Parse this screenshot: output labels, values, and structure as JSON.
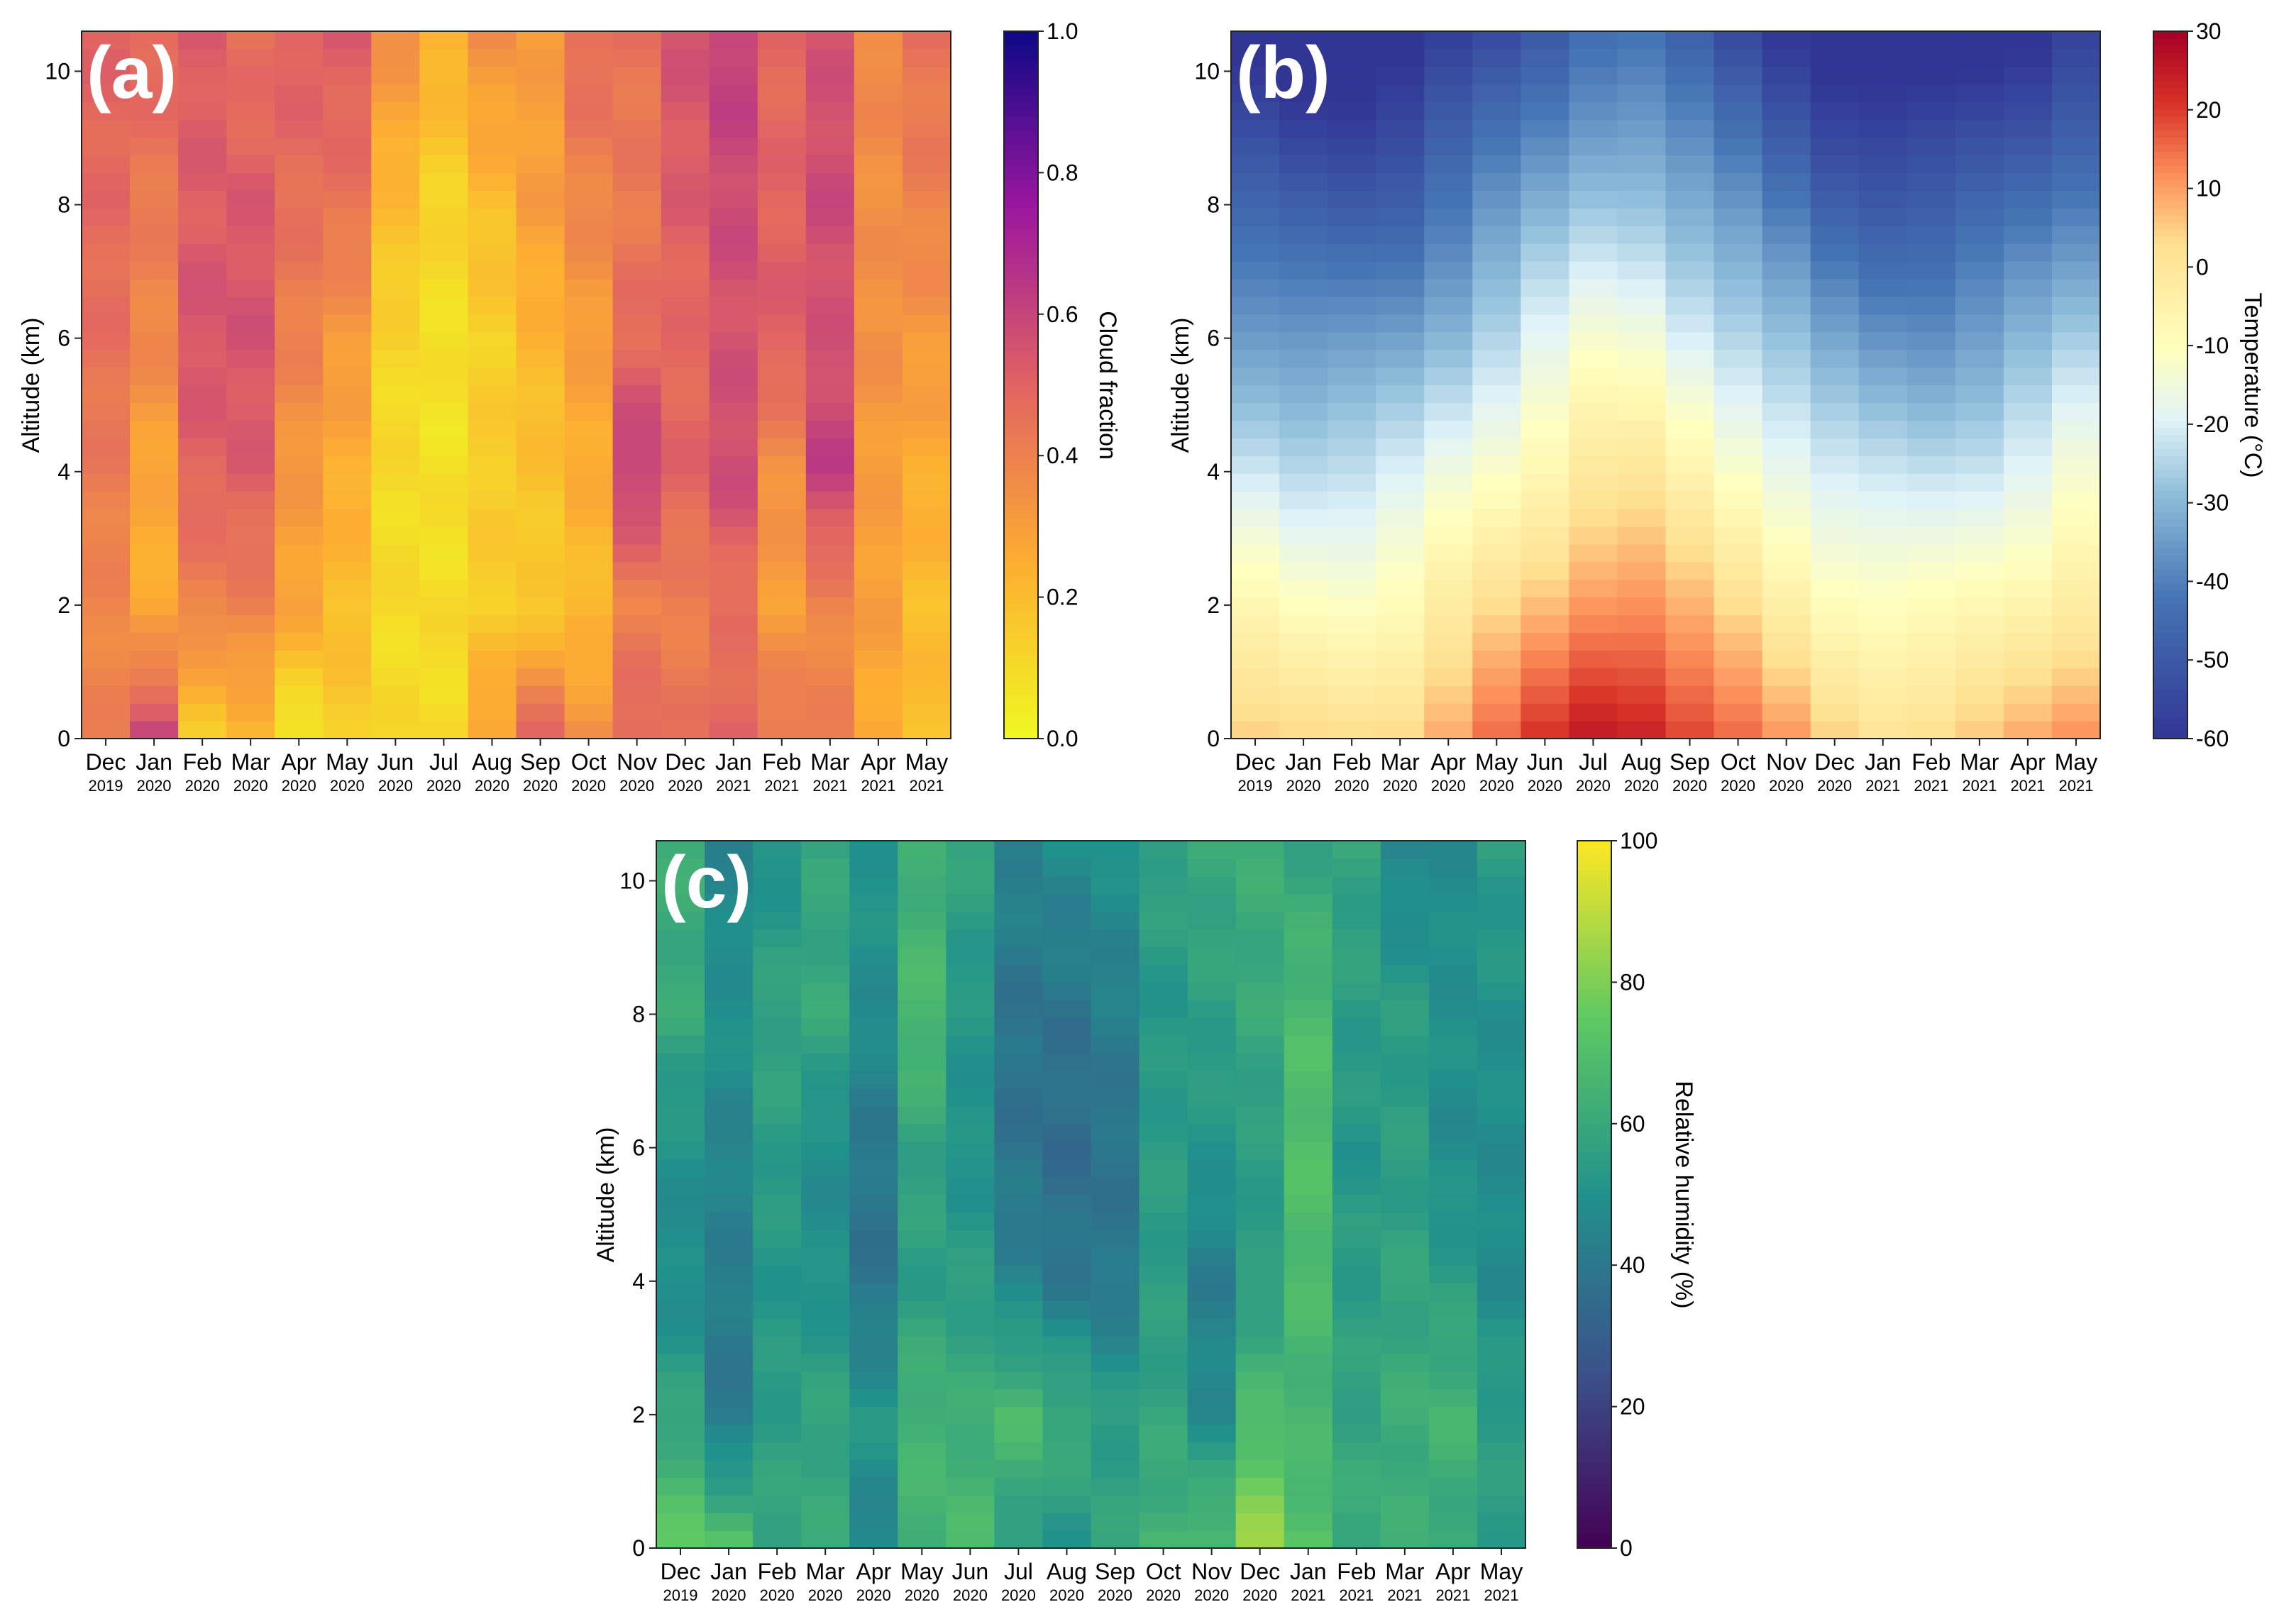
{
  "figure": {
    "months": [
      "Dec",
      "Jan",
      "Feb",
      "Mar",
      "Apr",
      "May",
      "Jun",
      "Jul",
      "Aug",
      "Sep",
      "Oct",
      "Nov",
      "Dec",
      "Jan",
      "Feb",
      "Mar",
      "Apr",
      "May"
    ],
    "years": [
      "2019",
      "2020",
      "2020",
      "2020",
      "2020",
      "2020",
      "2020",
      "2020",
      "2020",
      "2020",
      "2020",
      "2020",
      "2020",
      "2021",
      "2021",
      "2021",
      "2021",
      "2021"
    ]
  },
  "chart_data": [
    {
      "type": "heatmap",
      "panel_label": "(a)",
      "variable": "cloud_fraction",
      "ylabel": "Altitude (km)",
      "colorbar_label": "Cloud fraction",
      "ylim": [
        0,
        10.6
      ],
      "yticks": [
        "0",
        "2",
        "4",
        "6",
        "8",
        "10"
      ],
      "clim": [
        0,
        1
      ],
      "colorbar_ticks": [
        "0.0",
        "0.2",
        "0.4",
        "0.6",
        "0.8",
        "1.0"
      ],
      "colormap": "plasma_r",
      "monthly_profile": {
        "altitude_km": [
          0,
          2,
          4,
          6,
          8,
          10.5
        ],
        "values": [
          [
            0.4,
            0.38,
            0.42,
            0.46,
            0.48,
            0.5
          ],
          [
            0.6,
            0.25,
            0.27,
            0.38,
            0.42,
            0.5
          ],
          [
            0.15,
            0.4,
            0.5,
            0.55,
            0.52,
            0.52
          ],
          [
            0.2,
            0.4,
            0.52,
            0.55,
            0.53,
            0.45
          ],
          [
            0.05,
            0.28,
            0.32,
            0.4,
            0.46,
            0.52
          ],
          [
            0.15,
            0.2,
            0.25,
            0.32,
            0.45,
            0.52
          ],
          [
            0.1,
            0.1,
            0.1,
            0.12,
            0.2,
            0.35
          ],
          [
            0.1,
            0.1,
            0.08,
            0.08,
            0.12,
            0.25
          ],
          [
            0.3,
            0.15,
            0.15,
            0.14,
            0.2,
            0.35
          ],
          [
            0.5,
            0.15,
            0.18,
            0.22,
            0.3,
            0.3
          ],
          [
            0.35,
            0.2,
            0.25,
            0.3,
            0.38,
            0.48
          ],
          [
            0.5,
            0.4,
            0.62,
            0.48,
            0.42,
            0.45
          ],
          [
            0.45,
            0.4,
            0.5,
            0.48,
            0.52,
            0.55
          ],
          [
            0.5,
            0.45,
            0.58,
            0.55,
            0.58,
            0.62
          ],
          [
            0.45,
            0.3,
            0.35,
            0.52,
            0.5,
            0.48
          ],
          [
            0.4,
            0.38,
            0.62,
            0.55,
            0.58,
            0.55
          ],
          [
            0.25,
            0.3,
            0.3,
            0.35,
            0.35,
            0.38
          ],
          [
            0.2,
            0.2,
            0.25,
            0.32,
            0.4,
            0.45
          ]
        ]
      }
    },
    {
      "type": "heatmap",
      "panel_label": "(b)",
      "variable": "temperature",
      "ylabel": "Altitude (km)",
      "colorbar_label": "Temperature (°C)",
      "ylim": [
        0,
        10.6
      ],
      "yticks": [
        "0",
        "2",
        "4",
        "6",
        "8",
        "10"
      ],
      "clim": [
        -60,
        30
      ],
      "colorbar_ticks": [
        "30",
        "20",
        "10",
        "0",
        "-10",
        "-20",
        "-30",
        "-40",
        "-50",
        "-60"
      ],
      "colormap": "RdYlBu_r",
      "surface_temperature_c": [
        5,
        3,
        3,
        5,
        10,
        15,
        20,
        25,
        25,
        20,
        15,
        10,
        5,
        3,
        3,
        5,
        8,
        12
      ],
      "lapse_rate_c_per_km": 6.5
    },
    {
      "type": "heatmap",
      "panel_label": "(c)",
      "variable": "relative_humidity",
      "ylabel": "Altitude (km)",
      "colorbar_label": "Relative humidity (%)",
      "ylim": [
        0,
        10.6
      ],
      "yticks": [
        "0",
        "2",
        "4",
        "6",
        "8",
        "10"
      ],
      "clim": [
        0,
        100
      ],
      "colorbar_ticks": [
        "0",
        "20",
        "40",
        "60",
        "80",
        "100"
      ],
      "colormap": "viridis",
      "monthly_profile": {
        "altitude_km": [
          0,
          2,
          4,
          6,
          8,
          10.5
        ],
        "values": [
          [
            75,
            58,
            48,
            50,
            60,
            62
          ],
          [
            72,
            40,
            42,
            45,
            50,
            45
          ],
          [
            60,
            55,
            52,
            55,
            58,
            50
          ],
          [
            60,
            58,
            50,
            48,
            60,
            58
          ],
          [
            45,
            52,
            38,
            40,
            48,
            52
          ],
          [
            65,
            65,
            55,
            58,
            68,
            62
          ],
          [
            68,
            62,
            55,
            50,
            52,
            58
          ],
          [
            55,
            68,
            45,
            38,
            38,
            45
          ],
          [
            52,
            62,
            40,
            35,
            38,
            48
          ],
          [
            58,
            55,
            40,
            38,
            42,
            50
          ],
          [
            65,
            58,
            55,
            55,
            52,
            58
          ],
          [
            70,
            48,
            42,
            52,
            56,
            60
          ],
          [
            85,
            68,
            55,
            55,
            60,
            62
          ],
          [
            72,
            65,
            68,
            70,
            68,
            58
          ],
          [
            62,
            58,
            55,
            52,
            55,
            58
          ],
          [
            62,
            62,
            58,
            55,
            55,
            45
          ],
          [
            60,
            65,
            55,
            48,
            50,
            48
          ],
          [
            55,
            55,
            48,
            48,
            50,
            55
          ]
        ]
      }
    }
  ]
}
